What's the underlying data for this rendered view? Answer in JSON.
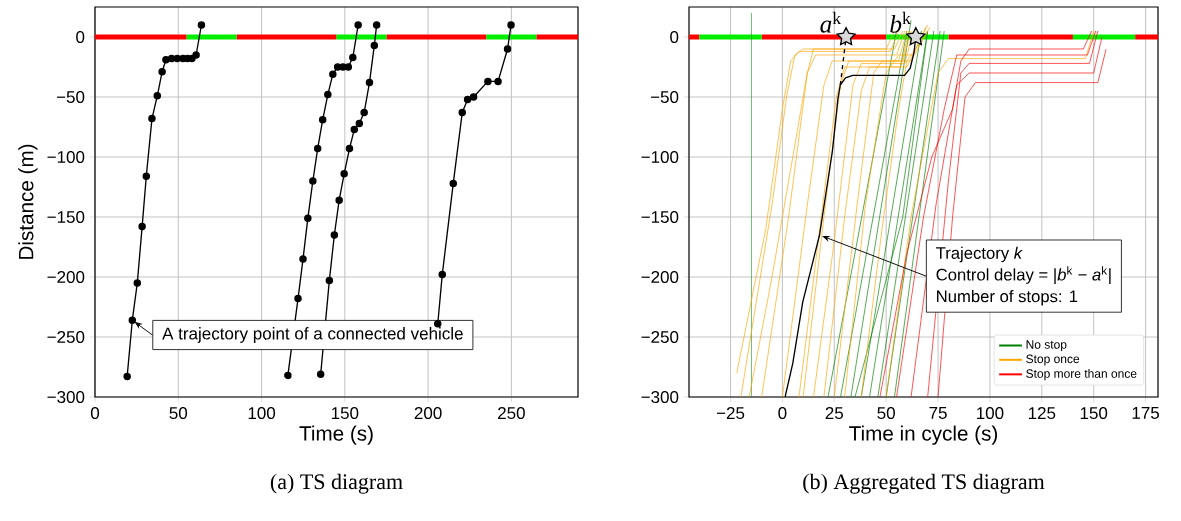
{
  "chart_data": [
    {
      "type": "line",
      "title": "(a) TS diagram",
      "xlabel": "Time (s)",
      "ylabel": "Distance (m)",
      "xlim": [
        0,
        290
      ],
      "ylim": [
        -300,
        25
      ],
      "xticks": [
        0,
        50,
        100,
        150,
        200,
        250
      ],
      "yticks": [
        {
          "value": -300,
          "label": "−300"
        },
        {
          "value": -250,
          "label": "−250"
        },
        {
          "value": -200,
          "label": "−200"
        },
        {
          "value": -150,
          "label": "−150"
        },
        {
          "value": -100,
          "label": "−100"
        },
        {
          "value": -50,
          "label": "−50"
        },
        0
      ],
      "grid": true,
      "marker": "circle",
      "annotations": [
        {
          "text": "A trajectory point of a connected vehicle",
          "x": 22.4,
          "y": -236
        }
      ],
      "series": [
        {
          "color": "#ff0000",
          "marker": "none",
          "x": [
            0,
            55,
            null,
            85,
            145,
            null,
            175,
            235,
            null,
            265,
            290
          ],
          "values": [
            0,
            0,
            null,
            0,
            0,
            null,
            0,
            0,
            null,
            0,
            0
          ]
        },
        {
          "color": "#00ee00",
          "marker": "none",
          "x": [
            55,
            85,
            null,
            145,
            175,
            null,
            235,
            265
          ],
          "values": [
            0,
            0,
            null,
            0,
            0,
            null,
            0,
            0
          ]
        },
        {
          "color": "#000000",
          "x": [
            19.3,
            22.4,
            25.4,
            28.3,
            30.8,
            34.2,
            37.4,
            40.3,
            42.6,
            46,
            49.4,
            52.8,
            55.5,
            58.2,
            60.7,
            63.9
          ],
          "values": [
            -283,
            -236,
            -205,
            -158,
            -116,
            -68,
            -49,
            -29,
            -19,
            -18,
            -18,
            -18,
            -18,
            -18,
            -15,
            10
          ]
        },
        {
          "color": "#000000",
          "x": [
            115.8,
            121.9,
            124.9,
            127.8,
            130.8,
            133.7,
            136.7,
            139.8,
            142.8,
            145.7,
            148.9,
            152.1,
            154.8,
            158
          ],
          "values": [
            -282,
            -218,
            -185,
            -151,
            -120,
            -93,
            -69,
            -48,
            -31,
            -25,
            -25,
            -25,
            -17,
            10
          ]
        },
        {
          "color": "#000000",
          "x": [
            135.5,
            140.7,
            143.7,
            146.6,
            149.6,
            152.8,
            155.7,
            158.7,
            161.6,
            164.8,
            167.7,
            169.1
          ],
          "values": [
            -281,
            -203,
            -165,
            -136,
            -114,
            -93,
            -77,
            -72,
            -63,
            -38,
            -7,
            10
          ]
        },
        {
          "color": "#000000",
          "x": [
            205.8,
            208.5,
            215.1,
            220.5,
            223.7,
            227.3,
            235.9,
            242,
            247.7,
            249.8
          ],
          "values": [
            -239,
            -198,
            -122,
            -63,
            -52,
            -50,
            -37,
            -37,
            -10,
            10
          ]
        }
      ]
    },
    {
      "type": "line",
      "title": "(b) Aggregated TS diagram",
      "xlabel": "Time in cycle (s)",
      "xlim": [
        -45,
        181
      ],
      "ylim": [
        -300,
        25
      ],
      "xticks": [
        {
          "value": -25,
          "label": "−25"
        },
        0,
        25,
        50,
        75,
        100,
        125,
        150,
        175
      ],
      "yticks": [
        {
          "value": -300,
          "label": "−300"
        },
        {
          "value": -250,
          "label": "−250"
        },
        {
          "value": -200,
          "label": "−200"
        },
        {
          "value": -150,
          "label": "−150"
        },
        {
          "value": -100,
          "label": "−100"
        },
        {
          "value": -50,
          "label": "−50"
        },
        0
      ],
      "grid": true,
      "legend": "bottom right",
      "annotations": [
        {
          "text": "Trajectory *k*",
          "x": 17.9,
          "y": -165
        },
        "Control delay = |*b*$^{k}$ − *a*$^{k}$|",
        "Number of stops: 1"
      ],
      "series": [
        {
          "color": "#ff0000",
          "x": [
            -45,
            -40,
            null,
            -10,
            50,
            null,
            80,
            140,
            null,
            170,
            181
          ],
          "values": [
            0,
            0,
            null,
            0,
            0,
            null,
            0,
            0,
            null,
            0,
            0
          ]
        },
        {
          "color": "#00ee00",
          "x": [
            -40,
            -10,
            null,
            50,
            80,
            null,
            140,
            170
          ],
          "values": [
            0,
            0,
            null,
            0,
            0,
            null,
            0,
            0
          ]
        },
        {
          "name": "No stop",
          "color": "#008000",
          "x": [
            -15,
            -15,
            null,
            22,
            55,
            null,
            28,
            60,
            null,
            33,
            62,
            null,
            38,
            67,
            null,
            42,
            70,
            null,
            46,
            73,
            null,
            50,
            76,
            null,
            54,
            78,
            null,
            35,
            58,
            70
          ],
          "values": [
            -300,
            20,
            null,
            -300,
            5,
            null,
            -300,
            5,
            null,
            -300,
            14,
            null,
            -300,
            5,
            null,
            -300,
            5,
            null,
            -300,
            5,
            null,
            -300,
            5,
            null,
            -300,
            5,
            null,
            -300,
            -150,
            5
          ]
        },
        {
          "name": "Stop once",
          "color": "#ffa500",
          "x": [
            -22,
            -8,
            0,
            4,
            8,
            52,
            56,
            null,
            -20,
            -5,
            2,
            6,
            10,
            54,
            58,
            null,
            -10,
            3,
            12,
            16,
            55,
            59,
            null,
            0,
            12,
            20,
            24,
            56,
            60,
            null,
            8,
            18,
            26,
            30,
            57,
            61,
            null,
            10,
            20,
            28,
            32,
            58,
            62,
            null,
            15,
            25,
            34,
            38,
            59,
            63,
            null,
            20,
            30,
            38,
            42,
            60,
            70,
            null,
            25,
            36,
            44,
            48,
            62,
            71,
            null,
            30,
            40,
            50,
            56,
            63,
            69,
            null,
            38,
            48,
            56,
            60,
            64,
            70,
            null,
            50,
            62,
            75,
            80,
            146,
            150,
            null,
            -16,
            -5,
            5,
            12,
            15,
            50,
            54
          ],
          "values": [
            -280,
            -160,
            -60,
            -20,
            -12,
            -12,
            5,
            null,
            -300,
            -140,
            -50,
            -15,
            -10,
            -10,
            5,
            null,
            -300,
            -150,
            -30,
            -15,
            -15,
            5,
            null,
            -300,
            -140,
            -40,
            -20,
            -20,
            5,
            null,
            -300,
            -160,
            -50,
            -25,
            -25,
            5,
            null,
            -300,
            -150,
            -40,
            -20,
            -20,
            5,
            null,
            -300,
            -170,
            -40,
            -22,
            -22,
            5,
            null,
            -300,
            -150,
            -45,
            -25,
            -25,
            10,
            null,
            -300,
            -140,
            -30,
            -20,
            -20,
            8,
            null,
            -300,
            -140,
            -30,
            -15,
            -15,
            8,
            null,
            -300,
            -160,
            -60,
            -20,
            -10,
            5,
            null,
            -300,
            -150,
            -30,
            -18,
            -18,
            5,
            null,
            -300,
            -200,
            -100,
            -30,
            -10,
            -10,
            5
          ]
        },
        {
          "name": "Stop more than once",
          "color": "#ff0000",
          "x": [
            47,
            60,
            72,
            82,
            86,
            90,
            145,
            149,
            null,
            55,
            68,
            78,
            84,
            147,
            151,
            null,
            62,
            74,
            84,
            90,
            150,
            154,
            null,
            75,
            82,
            88,
            93,
            152,
            156,
            null,
            70,
            80,
            86,
            90,
            148,
            152
          ],
          "values": [
            -300,
            -180,
            -100,
            -60,
            -20,
            -10,
            -10,
            5,
            null,
            -300,
            -150,
            -60,
            -15,
            -15,
            5,
            null,
            -300,
            -140,
            -40,
            -30,
            -30,
            0,
            null,
            -300,
            -150,
            -50,
            -38,
            -38,
            -10,
            null,
            -300,
            -120,
            -30,
            -22,
            -22,
            5
          ]
        },
        {
          "color": "#000000",
          "x": [
            1.3,
            5,
            9.8,
            17.9,
            24.1,
            26.8,
            27.9,
            30.4,
            33.9,
            58.9,
            61.6,
            63.4,
            64.3
          ],
          "values": [
            -300,
            -272,
            -221,
            -165,
            -95,
            -51,
            -40,
            -34,
            -32,
            -32,
            -26,
            -13,
            0
          ]
        },
        {
          "color": "#000000",
          "line_style": "dashed",
          "x": [
            27.9,
            30.7
          ],
          "values": [
            -40,
            0
          ]
        },
        {
          "type": "scatter",
          "name": "*a*$^{k}$",
          "color": "#d9d9d9",
          "marker": "star",
          "x": [
            30.7
          ],
          "values": [
            0
          ]
        },
        {
          "type": "scatter",
          "name": "*b*$^{k}$",
          "color": "#d9d9d9",
          "marker": "star",
          "x": [
            64.3
          ],
          "values": [
            0
          ]
        }
      ]
    }
  ]
}
